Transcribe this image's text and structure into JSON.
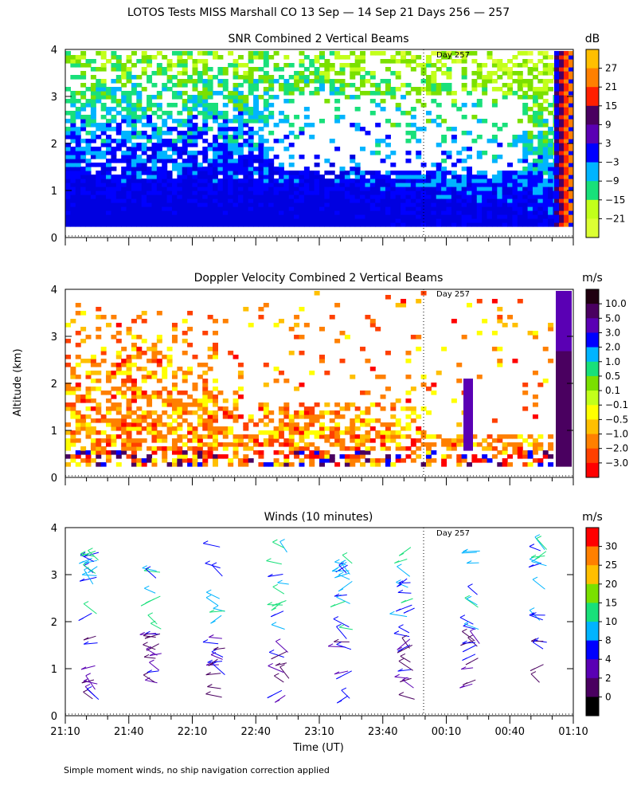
{
  "title": "LOTOS Tests MISS Marshall CO  13 Sep — 14 Sep 21 Days 256 — 257",
  "y_axis_label": "Altitude (km)",
  "x_axis_label": "Time (UT)",
  "footnote": "Simple moment winds, no ship navigation correction applied",
  "day_marker_label": "Day 257",
  "chart_data": [
    {
      "type": "heatmap",
      "title": "SNR Combined 2 Vertical Beams",
      "unit": "dB",
      "ylim": [
        0,
        4
      ],
      "y_ticks": [
        "0",
        "1",
        "2",
        "3",
        "4"
      ],
      "x_ticks": [
        "21:10",
        "21:40",
        "22:10",
        "22:40",
        "23:10",
        "23:40",
        "00:10",
        "00:40",
        "01:10"
      ],
      "colorbar": {
        "labels": [
          "27",
          "21",
          "15",
          "9",
          "3",
          "−3",
          "−9",
          "−15",
          "−21"
        ],
        "colors": [
          "#ffbf00",
          "#ff8000",
          "#ff1f00",
          "#4a0060",
          "#5a00b4",
          "#0000ff",
          "#00b4ff",
          "#18e07a",
          "#c2ff1a",
          "#dcff33"
        ]
      }
    },
    {
      "type": "heatmap",
      "title": "Doppler Velocity Combined 2 Vertical Beams",
      "unit": "m/s",
      "ylim": [
        0,
        4
      ],
      "y_ticks": [
        "0",
        "1",
        "2",
        "3",
        "4"
      ],
      "colorbar": {
        "labels": [
          "10.0",
          "5.0",
          "3.0",
          "2.0",
          "1.0",
          "0.5",
          "0.1",
          "−0.1",
          "−0.5",
          "−1.0",
          "−2.0",
          "−3.0"
        ],
        "colors": [
          "#200010",
          "#4a0060",
          "#5a00b4",
          "#0000ff",
          "#00b4ff",
          "#18e07a",
          "#7ae000",
          "#c2ff1a",
          "#ffff00",
          "#ffbf00",
          "#ff8000",
          "#ff4000",
          "#ff0000"
        ]
      }
    },
    {
      "type": "scatter",
      "title": "Winds (10 minutes)",
      "unit": "m/s",
      "ylim": [
        0,
        4
      ],
      "y_ticks": [
        "0",
        "1",
        "2",
        "3",
        "4"
      ],
      "x_ticks": [
        "21:10",
        "21:40",
        "22:10",
        "22:40",
        "23:10",
        "23:40",
        "00:10",
        "00:40",
        "01:10"
      ],
      "colorbar": {
        "labels": [
          "30",
          "25",
          "20",
          "15",
          "10",
          "8",
          "4",
          "2",
          "0"
        ],
        "colors": [
          "#ff0000",
          "#ff8000",
          "#ffbf00",
          "#7ae000",
          "#18e07a",
          "#00b4ff",
          "#0000ff",
          "#5a00b4",
          "#4a0060",
          "#000000"
        ]
      }
    }
  ]
}
